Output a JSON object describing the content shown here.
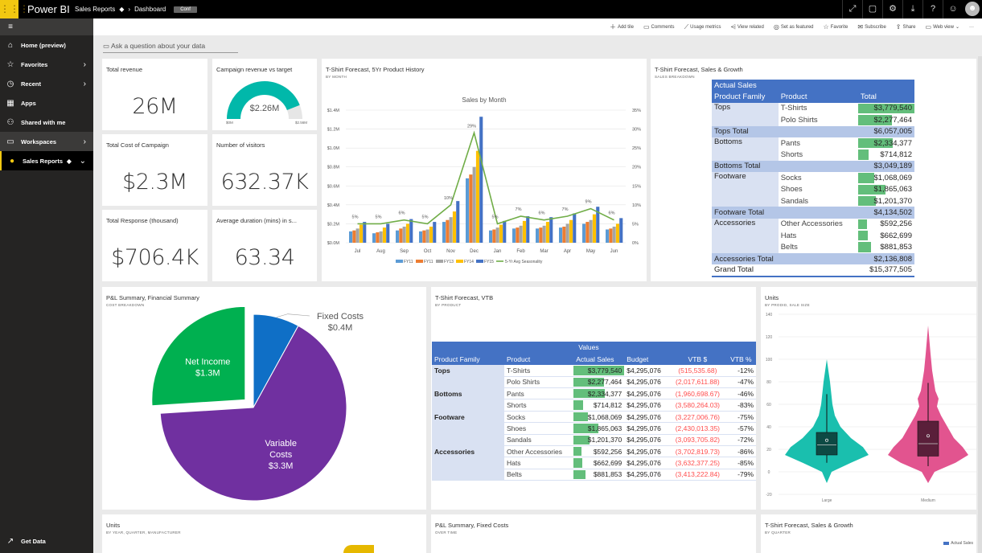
{
  "topbar": {
    "app_name": "Power BI",
    "breadcrumb": [
      "Sales Reports",
      "Dashboard"
    ],
    "badge": "Conf",
    "icons": [
      "expand-icon",
      "comment-icon",
      "gear-icon",
      "download-icon",
      "help-icon",
      "smiley-icon",
      "avatar-icon"
    ]
  },
  "sidebar": {
    "items": [
      {
        "label": "Home (preview)",
        "icon": "home-icon"
      },
      {
        "label": "Favorites",
        "icon": "star-icon"
      },
      {
        "label": "Recent",
        "icon": "clock-icon"
      },
      {
        "label": "Apps",
        "icon": "apps-icon"
      },
      {
        "label": "Shared with me",
        "icon": "shared-icon"
      },
      {
        "label": "Workspaces",
        "icon": "workspaces-icon"
      },
      {
        "label": "Sales Reports",
        "icon": "workspace-avatar-icon"
      }
    ],
    "footer": "Get Data"
  },
  "toolbar": {
    "items": [
      "Add tile",
      "Comments",
      "Usage metrics",
      "View related",
      "Set as featured",
      "Favorite",
      "Subscribe",
      "Share",
      "Web view"
    ],
    "more": "···"
  },
  "qna": {
    "placeholder": "Ask a question about your data"
  },
  "kpis": [
    {
      "title": "Total revenue",
      "value": "26M"
    },
    {
      "title": "Total Cost of Campaign",
      "value": "$2.3M"
    },
    {
      "title": "Number of visitors",
      "value": "632.37K"
    },
    {
      "title": "Total Response (thousand)",
      "value": "$706.4K"
    },
    {
      "title": "Average duration (mins) in s...",
      "value": "63.34"
    }
  ],
  "gauge": {
    "title": "Campaign revenue vs target",
    "value": "$2.26M",
    "min": "$0M",
    "max": "$2.56M",
    "fraction": 0.88,
    "color": "#01b8aa"
  },
  "chart_data": [
    {
      "type": "bar",
      "title": "T-Shirt Forecast, 5Yr Product History",
      "subtitle": "BY MONTH",
      "chart_title": "Sales by Month",
      "categories": [
        "Jul",
        "Aug",
        "Sep",
        "Oct",
        "Nov",
        "Dec",
        "Jan",
        "Feb",
        "Mar",
        "Apr",
        "May",
        "Jun"
      ],
      "ylim": [
        0,
        1.4
      ],
      "y_ticks": [
        "$0.0M",
        "$0.2M",
        "$0.4M",
        "$0.6M",
        "$0.8M",
        "$1.0M",
        "$1.2M",
        "$1.4M"
      ],
      "y2lim": [
        0,
        35
      ],
      "y2_ticks": [
        "0%",
        "5%",
        "10%",
        "15%",
        "20%",
        "25%",
        "30%",
        "35%"
      ],
      "series": [
        {
          "name": "FY11",
          "color": "#5b9bd5",
          "values": [
            0.12,
            0.1,
            0.13,
            0.12,
            0.22,
            0.68,
            0.13,
            0.15,
            0.15,
            0.16,
            0.2,
            0.14
          ]
        },
        {
          "name": "FY11",
          "color": "#ed7d31",
          "values": [
            0.13,
            0.11,
            0.15,
            0.13,
            0.24,
            0.72,
            0.14,
            0.16,
            0.16,
            0.17,
            0.22,
            0.15
          ]
        },
        {
          "name": "FY13",
          "color": "#a5a5a5",
          "values": [
            0.15,
            0.12,
            0.17,
            0.14,
            0.27,
            0.8,
            0.16,
            0.18,
            0.18,
            0.2,
            0.24,
            0.17
          ]
        },
        {
          "name": "FY14",
          "color": "#ffc000",
          "values": [
            0.19,
            0.16,
            0.2,
            0.17,
            0.33,
            0.97,
            0.19,
            0.23,
            0.22,
            0.24,
            0.3,
            0.2
          ]
        },
        {
          "name": "FY15",
          "color": "#4472c4",
          "values": [
            0.22,
            0.2,
            0.25,
            0.22,
            0.44,
            1.33,
            0.23,
            0.28,
            0.27,
            0.31,
            0.38,
            0.26
          ]
        }
      ],
      "line": {
        "name": "5-Yr Avg Seasonality",
        "color": "#70ad47",
        "values": [
          5,
          5,
          6,
          5,
          10,
          29,
          5,
          7,
          6,
          7,
          9,
          6
        ],
        "labels": [
          "5%",
          "5%",
          "6%",
          "5%",
          "10%",
          "29%",
          "5%",
          "7%",
          "6%",
          "7%",
          "9%",
          "6%"
        ]
      },
      "grid": true,
      "legend": "bottom"
    },
    {
      "type": "pie",
      "title": "P&L Summary, Financial Summary",
      "subtitle": "COST BREAKDOWN",
      "slices": [
        {
          "name": "Fixed Costs",
          "value": 0.4,
          "label": "$0.4M",
          "color": "#0f6fc6"
        },
        {
          "name": "Variable Costs",
          "value": 3.3,
          "label": "$3.3M",
          "color": "#7030a0"
        },
        {
          "name": "Net Income",
          "value": 1.3,
          "label": "$1.3M",
          "color": "#00b050"
        }
      ]
    },
    {
      "type": "violin",
      "title": "Units",
      "subtitle": "BY PRODID, SALE SIZE",
      "ylim": [
        -20,
        140
      ],
      "y_ticks": [
        "-20",
        "0",
        "20",
        "40",
        "60",
        "80",
        "100",
        "120",
        "140"
      ],
      "categories": [
        {
          "name": "Large",
          "color": "#1abfae",
          "box_color": "#0d4a44",
          "q1": 15,
          "median": 24,
          "q3": 35,
          "mean": 28,
          "whisker_low": 8,
          "whisker_high": 69,
          "min": -10,
          "max": 100
        },
        {
          "name": "Medium",
          "color": "#e2548f",
          "box_color": "#5a1f3a",
          "q1": 14,
          "median": 25,
          "q3": 45,
          "mean": 32,
          "whisker_low": 5,
          "whisker_high": 79,
          "min": -10,
          "max": 130
        }
      ]
    }
  ],
  "sales_growth": {
    "title": "T-Shirt Forecast, Sales & Growth",
    "subtitle": "SALES BREAKDOWN",
    "header1": "Actual Sales",
    "cols": [
      "Product Family",
      "Product",
      "Total"
    ],
    "groups": [
      {
        "family": "Tops",
        "rows": [
          [
            "T-Shirts",
            "$3,779,540",
            3779540
          ],
          [
            "Polo Shirts",
            "$2,277,464",
            2277464
          ]
        ],
        "total_label": "Tops Total",
        "total": "$6,057,005"
      },
      {
        "family": "Bottoms",
        "rows": [
          [
            "Pants",
            "$2,334,377",
            2334377
          ],
          [
            "Shorts",
            "$714,812",
            714812
          ]
        ],
        "total_label": "Bottoms Total",
        "total": "$3,049,189"
      },
      {
        "family": "Footware",
        "rows": [
          [
            "Socks",
            "$1,068,069",
            1068069
          ],
          [
            "Shoes",
            "$1,865,063",
            1865063
          ],
          [
            "Sandals",
            "$1,201,370",
            1201370
          ]
        ],
        "total_label": "Footware Total",
        "total": "$4,134,502"
      },
      {
        "family": "Accessories",
        "rows": [
          [
            "Other Accessories",
            "$592,256",
            592256
          ],
          [
            "Hats",
            "$662,699",
            662699
          ],
          [
            "Belts",
            "$881,853",
            881853
          ]
        ],
        "total_label": "Accessories Total",
        "total": "$2,136,808"
      }
    ],
    "grand_label": "Grand Total",
    "grand_total": "$15,377,505"
  },
  "vtb": {
    "title": "T-Shirt Forecast, VTB",
    "subtitle": "BY PRODUCT",
    "values_label": "Values",
    "cols": [
      "Product Family",
      "Product",
      "Actual Sales",
      "Budget",
      "VTB $",
      "VTB %"
    ],
    "rows": [
      [
        "Tops",
        "T-Shirts",
        "$3,779,540",
        3779540,
        "$4,295,076",
        "(515,535.68)",
        "-12%"
      ],
      [
        "",
        "Polo Shirts",
        "$2,277,464",
        2277464,
        "$4,295,076",
        "(2,017,611.88)",
        "-47%"
      ],
      [
        "Bottoms",
        "Pants",
        "$2,334,377",
        2334377,
        "$4,295,076",
        "(1,960,698.67)",
        "-46%"
      ],
      [
        "",
        "Shorts",
        "$714,812",
        714812,
        "$4,295,076",
        "(3,580,264.03)",
        "-83%"
      ],
      [
        "Footware",
        "Socks",
        "$1,068,069",
        1068069,
        "$4,295,076",
        "(3,227,006.76)",
        "-75%"
      ],
      [
        "",
        "Shoes",
        "$1,865,063",
        1865063,
        "$4,295,076",
        "(2,430,013.35)",
        "-57%"
      ],
      [
        "",
        "Sandals",
        "$1,201,370",
        1201370,
        "$4,295,076",
        "(3,093,705.82)",
        "-72%"
      ],
      [
        "Accessories",
        "Other Accessories",
        "$592,256",
        592256,
        "$4,295,076",
        "(3,702,819.73)",
        "-86%"
      ],
      [
        "",
        "Hats",
        "$662,699",
        662699,
        "$4,295,076",
        "(3,632,377.25)",
        "-85%"
      ],
      [
        "",
        "Belts",
        "$881,853",
        881853,
        "$4,295,076",
        "(3,413,222.84)",
        "-79%"
      ]
    ]
  },
  "bottom_tiles": [
    {
      "title": "Units",
      "subtitle": "BY YEAR, QUARTER, MANUFACTURER"
    },
    {
      "title": "P&L Summary, Fixed Costs",
      "subtitle": "OVER TIME"
    },
    {
      "title": "T-Shirt Forecast, Sales & Growth",
      "subtitle": "BY QUARTER",
      "legend": "Actual Sales"
    }
  ]
}
